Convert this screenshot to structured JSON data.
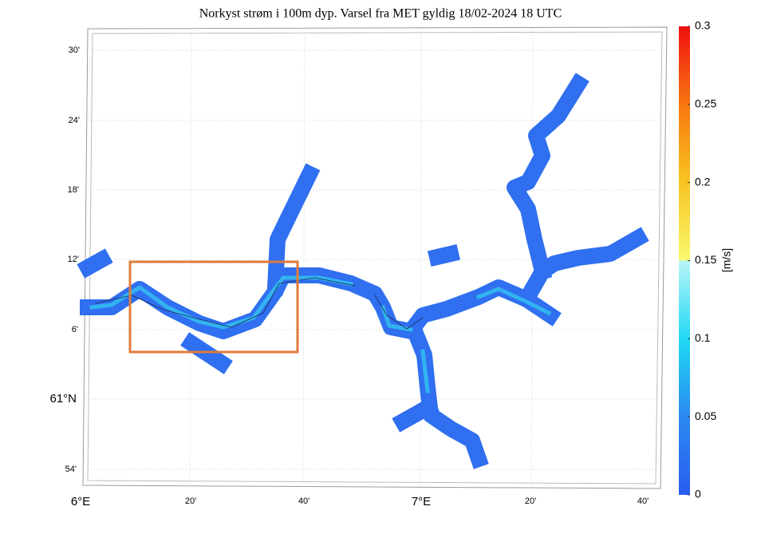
{
  "title": "Norkyst strøm i 100m dyp. Varsel fra MET gyldig 18/02-2024 18 UTC",
  "latitude_labels": [
    "30'",
    "24'",
    "18'",
    "12'",
    "6'",
    "61°N",
    "54'"
  ],
  "longitude_labels": [
    "6°E",
    "20'",
    "40'",
    "7°E",
    "20'",
    "40'"
  ],
  "colorbar": {
    "unit": "[m/s]",
    "lim": [
      0,
      0.3
    ],
    "ticks": [
      0,
      0.05,
      0.1,
      0.15,
      0.2,
      0.25,
      0.3
    ]
  }
}
